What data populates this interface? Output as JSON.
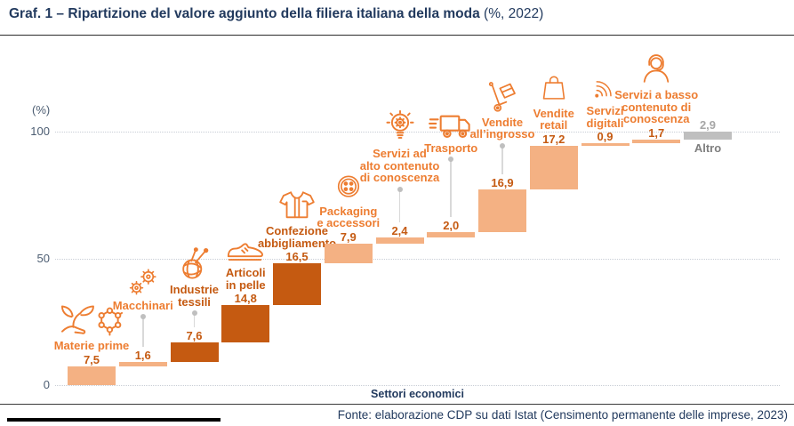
{
  "title": {
    "main": "Graf. 1 – Ripartizione del valore aggiunto della filiera italiana della moda",
    "suffix": " (%, 2022)"
  },
  "axes": {
    "y_unit": "(%)",
    "y_ticks": [
      100,
      50,
      0
    ],
    "x_label": "Settori economici"
  },
  "footer": {
    "source": "Fonte: elaborazione CDP su dati Istat (Censimento permanente delle imprese, 2023)"
  },
  "colors": {
    "accent_orange": "#ED7D31",
    "dark_orange": "#C55A11",
    "light_bar": "#F4B183",
    "gray_bar": "#BFBFBF",
    "gray_label": "#7F7F7F",
    "gray_value": "#A6A6A6",
    "navy": "#223A5E",
    "grid": "#C9CED6",
    "connector_line": "#D9D9D9",
    "connector_dot": "#BFBFBF"
  },
  "chart_data": {
    "type": "bar",
    "subtype": "waterfall",
    "title": "Ripartizione del valore aggiunto della filiera italiana della moda (%, 2022)",
    "xlabel": "Settori economici",
    "ylabel": "(%)",
    "ylim": [
      0,
      100
    ],
    "grid": "dotted horizontal at 0, 50, 100",
    "legend": "none",
    "categories": [
      "Materie prime",
      "Macchinari",
      "Industrie tessili",
      "Articoli in pelle",
      "Confezione abbigliamento",
      "Packaging e accessori",
      "Servizi ad alto contenuto di conoscenza",
      "Trasporto",
      "Vendite all’ingrosso",
      "Vendite retail",
      "Servizi digitali",
      "Servizi a basso contenuto di conoscenza",
      "Altro"
    ],
    "values": [
      7.5,
      1.6,
      7.6,
      14.8,
      16.5,
      7.9,
      2.4,
      2.0,
      16.9,
      17.2,
      0.9,
      1.7,
      2.9
    ],
    "columns": [
      {
        "name": "Materie prime",
        "lines": [
          "Materie prime"
        ],
        "value": 7.5,
        "value_label": "7,5",
        "theme": "light",
        "icon": "materie-prime-icon",
        "connector": 0,
        "label_below": false
      },
      {
        "name": "Macchinari",
        "lines": [
          "Macchinari"
        ],
        "value": 1.6,
        "value_label": "1,6",
        "theme": "light",
        "icon": "macchinari-icon",
        "connector": 42,
        "label_below": false
      },
      {
        "name": "Industrie tessili",
        "lines": [
          "Industrie",
          "tessili"
        ],
        "value": 7.6,
        "value_label": "7,6",
        "theme": "dark",
        "icon": "industrie-tessili-icon",
        "connector": 24,
        "label_below": false
      },
      {
        "name": "Articoli in pelle",
        "lines": [
          "Articoli",
          "in pelle"
        ],
        "value": 14.8,
        "value_label": "14,8",
        "theme": "dark",
        "icon": "articoli-in-pelle-icon",
        "connector": 0,
        "label_below": false
      },
      {
        "name": "Confezione abbigliamento",
        "lines": [
          "Confezione",
          "abbigliamento"
        ],
        "value": 16.5,
        "value_label": "16,5",
        "theme": "dark",
        "icon": "confezione-abbigliamento-icon",
        "connector": 0,
        "label_below": false
      },
      {
        "name": "Packaging e accessori",
        "lines": [
          "Packaging",
          "e accessori"
        ],
        "value": 7.9,
        "value_label": "7,9",
        "theme": "light",
        "icon": "packaging-icon",
        "connector": 0,
        "label_below": false
      },
      {
        "name": "Servizi ad alto contenuto di conoscenza",
        "lines": [
          "Servizi ad",
          "alto contenuto",
          "di conoscenza"
        ],
        "value": 2.4,
        "value_label": "2,4",
        "theme": "light",
        "icon": "servizi-alto-contenuto-icon",
        "connector": 45,
        "label_below": false
      },
      {
        "name": "Trasporto",
        "lines": [
          "Trasporto"
        ],
        "value": 2.0,
        "value_label": "2,0",
        "theme": "light",
        "icon": "trasporto-icon",
        "connector": 73,
        "label_below": false
      },
      {
        "name": "Vendite all’ingrosso",
        "lines": [
          "Vendite",
          "all’ingrosso"
        ],
        "value": 16.9,
        "value_label": "16,9",
        "theme": "light",
        "icon": "vendite-ingrosso-icon",
        "connector": 40,
        "label_below": false
      },
      {
        "name": "Vendite retail",
        "lines": [
          "Vendite",
          "retail"
        ],
        "value": 17.2,
        "value_label": "17,2",
        "theme": "light",
        "icon": "vendite-retail-icon",
        "connector": 0,
        "label_below": false
      },
      {
        "name": "Servizi digitali",
        "lines": [
          "Servizi",
          "digitali"
        ],
        "value": 0.9,
        "value_label": "0,9",
        "theme": "light",
        "icon": "servizi-digitali-icon",
        "connector": 0,
        "label_below": false
      },
      {
        "name": "Servizi a basso contenuto di conoscenza",
        "lines": [
          "Servizi a basso",
          "contenuto di",
          "conoscenza"
        ],
        "value": 1.7,
        "value_label": "1,7",
        "theme": "light",
        "icon": "servizi-basso-contenuto-icon",
        "connector": 0,
        "label_below": false
      },
      {
        "name": "Altro",
        "lines": [
          "Altro"
        ],
        "value": 2.9,
        "value_label": "2,9",
        "theme": "gray",
        "icon": "",
        "connector": 0,
        "label_below": true
      }
    ]
  }
}
